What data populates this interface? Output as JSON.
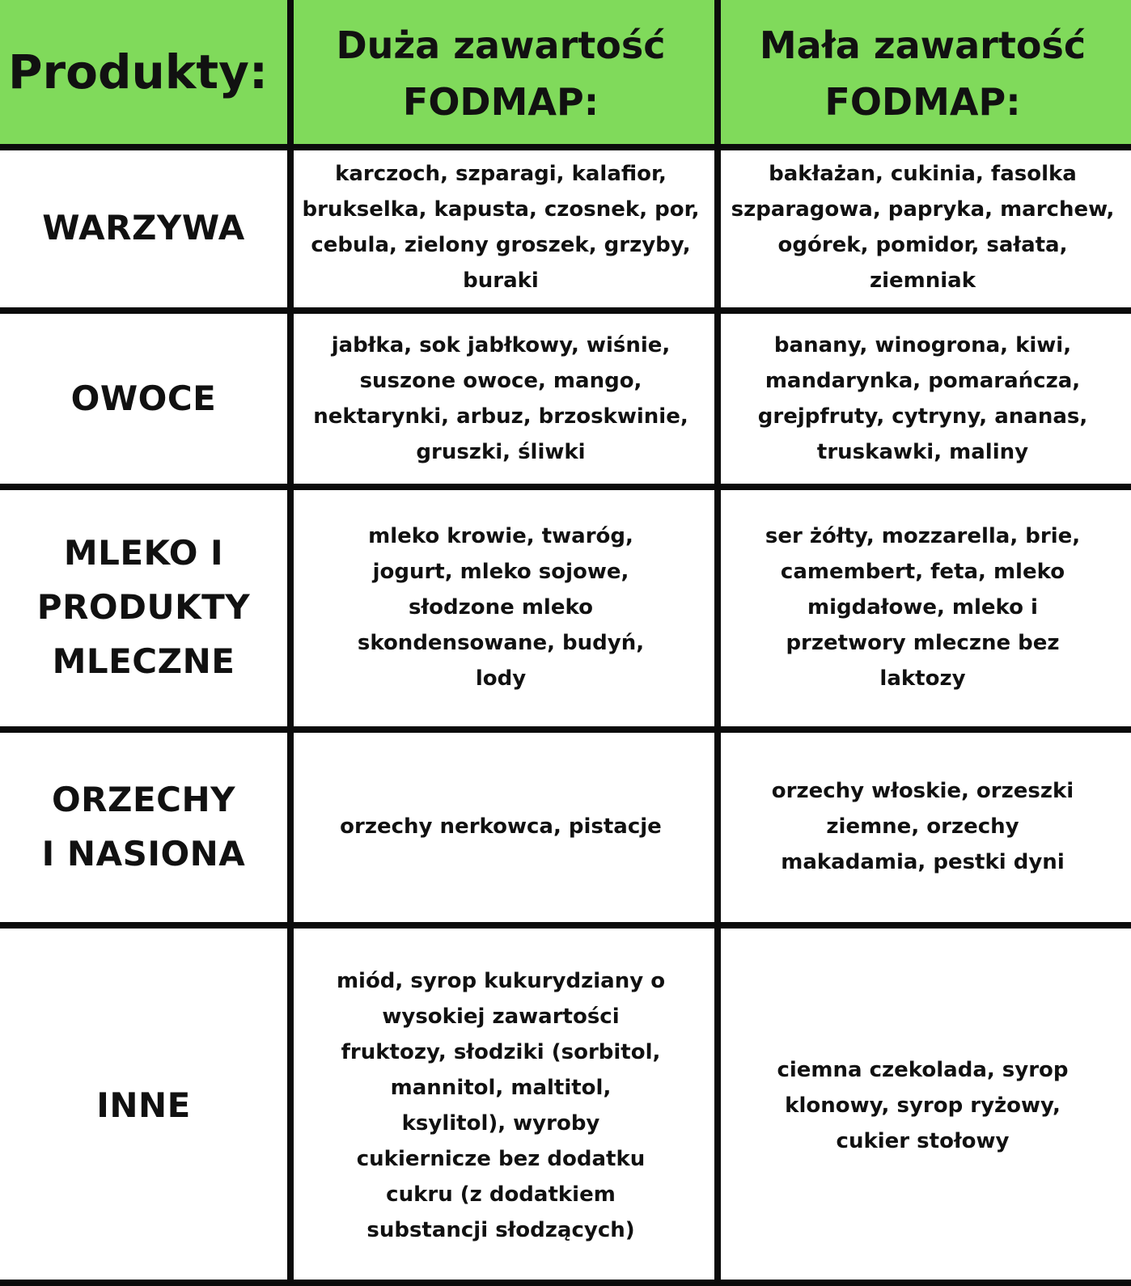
{
  "header": {
    "products_label": "Produkty:",
    "high_label_line1": "Duża zawartość",
    "high_label_line2": "FODMAP:",
    "low_label_line1": "Mała zawartość",
    "low_label_line2": "FODMAP:"
  },
  "colors": {
    "header_background": "#80da5b",
    "grid_lines": "#0b0b0b"
  },
  "rows": [
    {
      "category_lines": [
        "WARZYWA"
      ],
      "high_lines": [
        "karczoch, szparagi, kalafior,",
        "brukselka, kapusta, czosnek, por,",
        "cebula, zielony groszek, grzyby,",
        "buraki"
      ],
      "low_lines": [
        "bakłażan, cukinia, fasolka",
        "szparagowa, papryka, marchew,",
        "ogórek, pomidor, sałata,",
        "ziemniak"
      ]
    },
    {
      "category_lines": [
        "OWOCE"
      ],
      "high_lines": [
        "jabłka, sok jabłkowy, wiśnie,",
        "suszone owoce, mango,",
        "nektarynki, arbuz, brzoskwinie,",
        "gruszki, śliwki"
      ],
      "low_lines": [
        "banany, winogrona, kiwi,",
        "mandarynka, pomarańcza,",
        "grejpfruty, cytryny, ananas,",
        "truskawki, maliny"
      ]
    },
    {
      "category_lines": [
        "MLEKO I",
        "PRODUKTY",
        "MLECZNE"
      ],
      "high_lines": [
        "mleko krowie, twaróg,",
        "jogurt, mleko sojowe,",
        "słodzone mleko",
        "skondensowane, budyń,",
        "lody"
      ],
      "low_lines": [
        "ser żółty, mozzarella, brie,",
        "camembert, feta, mleko",
        "migdałowe, mleko i",
        "przetwory mleczne bez",
        "laktozy"
      ]
    },
    {
      "category_lines": [
        "ORZECHY",
        "I NASIONA"
      ],
      "high_lines": [
        "orzechy nerkowca, pistacje"
      ],
      "low_lines": [
        "orzechy włoskie, orzeszki",
        "ziemne, orzechy",
        "makadamia, pestki dyni"
      ]
    },
    {
      "category_lines": [
        "INNE"
      ],
      "high_lines": [
        "miód, syrop kukurydziany o",
        "wysokiej zawartości",
        "fruktozy, słodziki (sorbitol,",
        "mannitol, maltitol,",
        "ksylitol), wyroby",
        "cukiernicze bez dodatku",
        "cukru (z dodatkiem",
        "substancji słodzących)"
      ],
      "low_lines": [
        "ciemna czekolada, syrop",
        "klonowy, syrop ryżowy,",
        "cukier stołowy"
      ]
    }
  ]
}
